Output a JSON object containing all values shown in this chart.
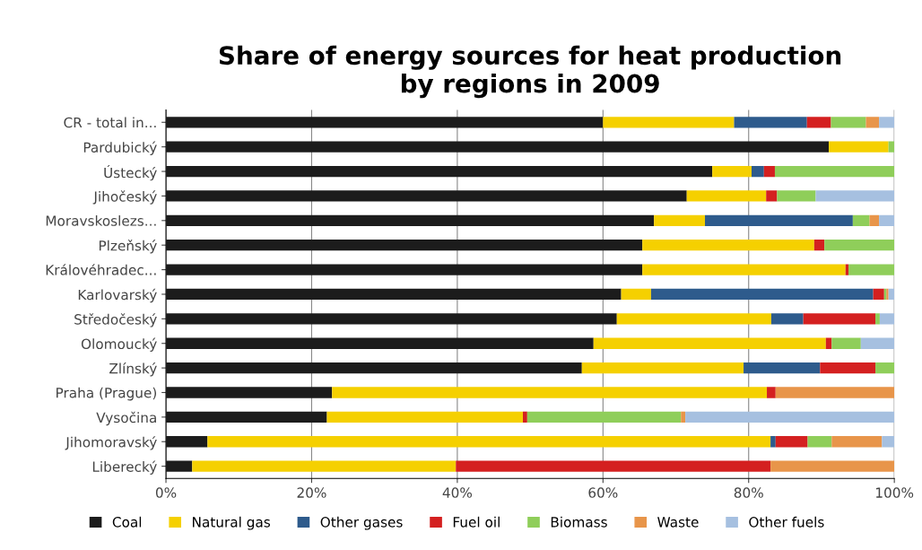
{
  "chart_data": {
    "type": "bar",
    "orientation": "horizontal",
    "stacked": true,
    "title": "Share of energy sources for heat production\nby regions in 2009",
    "categories": [
      "CR - total in...",
      "Pardubický",
      "Ústecký",
      "Jihočeský",
      "Moravskoslezs...",
      "Plzeňský",
      "Královéhradec...",
      "Karlovarský",
      "Středočeský",
      "Olomoucký",
      "Zlínský",
      "Praha (Prague)",
      "Vysočina",
      "Jihomoravský",
      "Liberecký"
    ],
    "series": [
      {
        "name": "Coal",
        "color": "#1c1c1c",
        "values": [
          60,
          91,
          75,
          71.5,
          67,
          65.4,
          65.4,
          62.5,
          61.9,
          58.7,
          57.1,
          22.8,
          22.1,
          5.7,
          3.6
        ]
      },
      {
        "name": "Natural gas",
        "color": "#f5d000",
        "values": [
          18,
          8.2,
          5.4,
          10.9,
          7,
          23.6,
          27.9,
          4.1,
          21.2,
          31.9,
          22.2,
          59.7,
          26.9,
          77.3,
          36.2
        ]
      },
      {
        "name": "Other gases",
        "color": "#2e5b8c",
        "values": [
          10,
          0,
          1.7,
          0,
          20.3,
          0,
          0,
          30.5,
          4.4,
          0,
          10.5,
          0,
          0,
          0.7,
          0
        ]
      },
      {
        "name": "Fuel oil",
        "color": "#d42020",
        "values": [
          3.3,
          0,
          1.5,
          1.5,
          0,
          1.4,
          0.4,
          1.5,
          9.9,
          0.8,
          7.6,
          1.2,
          0.6,
          4.4,
          43.2
        ]
      },
      {
        "name": "Biomass",
        "color": "#8fce5a",
        "values": [
          4.8,
          0.8,
          16.4,
          5.3,
          2.3,
          9.6,
          6.3,
          0.3,
          0.6,
          4,
          2.6,
          0,
          21.1,
          3.3,
          0
        ]
      },
      {
        "name": "Waste",
        "color": "#e8954a",
        "values": [
          1.8,
          0,
          0,
          0,
          1.3,
          0,
          0,
          0.3,
          0,
          0,
          0,
          16.3,
          0.6,
          6.9,
          17
        ]
      },
      {
        "name": "Other fuels",
        "color": "#a6c0e0",
        "values": [
          2.1,
          0,
          0,
          10.8,
          2.1,
          0,
          0,
          0.8,
          2,
          4.6,
          0,
          0,
          28.7,
          1.7,
          0
        ]
      }
    ],
    "xlim": [
      0,
      100
    ],
    "xticks": [
      {
        "value": 0,
        "label": "0%"
      },
      {
        "value": 20,
        "label": "20%"
      },
      {
        "value": 40,
        "label": "40%"
      },
      {
        "value": 60,
        "label": "60%"
      },
      {
        "value": 80,
        "label": "80%"
      },
      {
        "value": 100,
        "label": "100%"
      }
    ],
    "grid": "x",
    "legend": "bottom"
  }
}
